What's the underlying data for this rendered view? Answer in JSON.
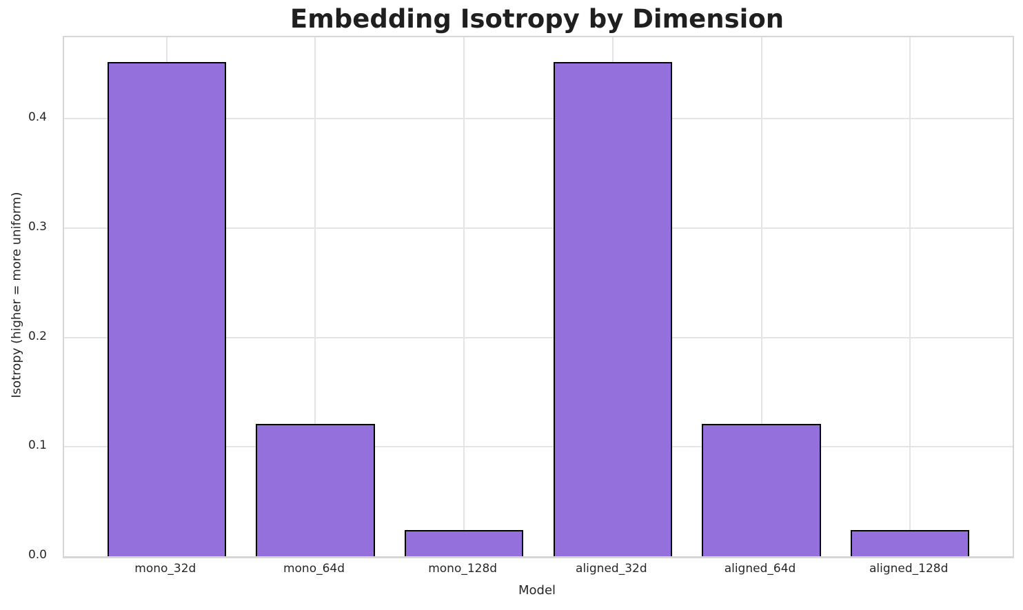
{
  "chart_data": {
    "type": "bar",
    "title": "Embedding Isotropy by Dimension",
    "xlabel": "Model",
    "ylabel": "Isotropy (higher = more uniform)",
    "categories": [
      "mono_32d",
      "mono_64d",
      "mono_128d",
      "aligned_32d",
      "aligned_64d",
      "aligned_128d"
    ],
    "values": [
      0.452,
      0.121,
      0.024,
      0.452,
      0.121,
      0.024
    ],
    "ytick_labels": [
      "0.0",
      "0.1",
      "0.2",
      "0.3",
      "0.4"
    ],
    "ytick_values": [
      0,
      0.1,
      0.2,
      0.3,
      0.4
    ],
    "ylim": [
      0,
      0.4746
    ],
    "grid": "both",
    "legend": "none",
    "colors": {
      "bar_fill": "#9370DB",
      "bar_edge": "#000000",
      "grid_line": "#e4e4e4",
      "spine": "#d6d6d6",
      "text": "#262626",
      "title_text": "#1f1f1f",
      "background": "#ffffff"
    },
    "layout": {
      "bar_width_units": 0.8,
      "x_axis_offset_units": 0.69,
      "x_axis_total_units": 6.38
    }
  }
}
